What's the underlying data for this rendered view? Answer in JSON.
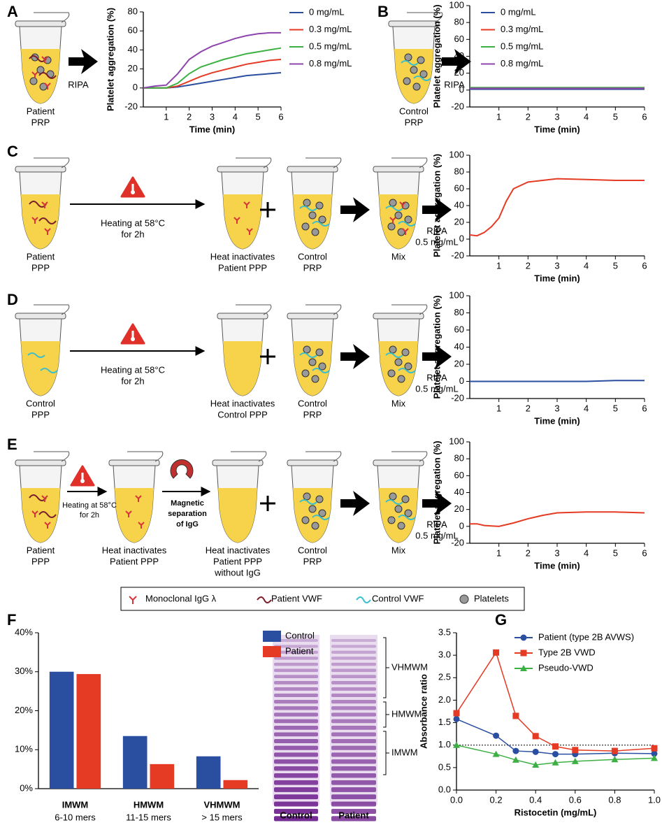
{
  "chart_data": [
    {
      "type": "line",
      "xlabel": "Time (min)",
      "ylabel": "Platelet aggregation (%)",
      "x": [
        0,
        0.5,
        1,
        1.5,
        2,
        2.5,
        3,
        3.5,
        4,
        4.5,
        5,
        5.5,
        6
      ],
      "xlim": [
        0,
        6
      ],
      "xticks": [
        1,
        2,
        3,
        4,
        5,
        6
      ],
      "ylim": [
        -20,
        80
      ],
      "yticks": [
        -20,
        0,
        20,
        40,
        60,
        80
      ],
      "legend": true,
      "series": [
        {
          "name": "0 mg/mL",
          "color": "#2b4fa0",
          "values": [
            0,
            0,
            0,
            1,
            3,
            5,
            7,
            9,
            11,
            13,
            14,
            15,
            16
          ]
        },
        {
          "name": "0.3 mg/mL",
          "color": "#e53a23",
          "values": [
            0,
            0,
            0,
            2,
            7,
            12,
            16,
            19,
            22,
            25,
            27,
            29,
            30
          ]
        },
        {
          "name": "0.5 mg/mL",
          "color": "#3cb043",
          "values": [
            0,
            0,
            0,
            5,
            15,
            22,
            26,
            30,
            33,
            36,
            38,
            40,
            42
          ]
        },
        {
          "name": "0.8 mg/mL",
          "color": "#8e44ad",
          "values": [
            0,
            2,
            3,
            15,
            30,
            38,
            44,
            48,
            52,
            55,
            57,
            58,
            58
          ]
        }
      ]
    },
    {
      "type": "line",
      "xlabel": "Time (min)",
      "ylabel": "Platelet aggregation (%)",
      "x": [
        0,
        0.5,
        1,
        1.5,
        2,
        2.5,
        3,
        3.5,
        4,
        4.5,
        5,
        5.5,
        6
      ],
      "xlim": [
        0,
        6
      ],
      "xticks": [
        1,
        2,
        3,
        4,
        5,
        6
      ],
      "ylim": [
        -20,
        100
      ],
      "yticks": [
        -20,
        0,
        20,
        40,
        60,
        80,
        100
      ],
      "legend": true,
      "series": [
        {
          "name": "0 mg/mL",
          "color": "#2b4fa0",
          "values": [
            1,
            1,
            1,
            1,
            1,
            1,
            1,
            1,
            1,
            1,
            1,
            1,
            1
          ]
        },
        {
          "name": "0.3 mg/mL",
          "color": "#e53a23",
          "values": [
            2,
            2,
            2,
            2,
            2,
            2,
            2,
            2,
            2,
            2,
            2,
            2,
            2
          ]
        },
        {
          "name": "0.5 mg/mL",
          "color": "#3cb043",
          "values": [
            3,
            3,
            3,
            3,
            3,
            3,
            3,
            3,
            3,
            3,
            3,
            3,
            3
          ]
        },
        {
          "name": "0.8 mg/mL",
          "color": "#8e44ad",
          "values": [
            2,
            2,
            2,
            2,
            2,
            2,
            2,
            2,
            2,
            2,
            2,
            2,
            2
          ]
        }
      ]
    },
    {
      "type": "line",
      "xlabel": "Time (min)",
      "ylabel": "Platelet aggregation (%)",
      "x": [
        0,
        0.25,
        0.5,
        0.75,
        1,
        1.25,
        1.5,
        2,
        2.5,
        3,
        4,
        5,
        6
      ],
      "xlim": [
        0,
        6
      ],
      "xticks": [
        1,
        2,
        3,
        4,
        5,
        6
      ],
      "ylim": [
        -20,
        100
      ],
      "yticks": [
        -20,
        0,
        20,
        40,
        60,
        80,
        100
      ],
      "legend": false,
      "series": [
        {
          "color": "#e53a23",
          "values": [
            5,
            4,
            8,
            15,
            25,
            45,
            60,
            68,
            70,
            72,
            71,
            70,
            70
          ]
        }
      ]
    },
    {
      "type": "line",
      "xlabel": "Time (min)",
      "ylabel": "Platelet aggregation (%)",
      "x": [
        0,
        1,
        2,
        3,
        4,
        5,
        6
      ],
      "xlim": [
        0,
        6
      ],
      "xticks": [
        1,
        2,
        3,
        4,
        5,
        6
      ],
      "ylim": [
        -20,
        100
      ],
      "yticks": [
        -20,
        0,
        20,
        40,
        60,
        80,
        100
      ],
      "legend": false,
      "series": [
        {
          "color": "#2b4fa0",
          "values": [
            0,
            0,
            0,
            0,
            0,
            1,
            1
          ]
        }
      ]
    },
    {
      "type": "line",
      "xlabel": "Time (min)",
      "ylabel": "Platelet aggregation (%)",
      "x": [
        0,
        0.25,
        0.5,
        1,
        1.5,
        2,
        2.5,
        3,
        4,
        5,
        6
      ],
      "xlim": [
        0,
        6
      ],
      "xticks": [
        1,
        2,
        3,
        4,
        5,
        6
      ],
      "ylim": [
        -20,
        100
      ],
      "yticks": [
        -20,
        0,
        20,
        40,
        60,
        80,
        100
      ],
      "legend": false,
      "series": [
        {
          "color": "#e53a23",
          "values": [
            3,
            3,
            1,
            0,
            4,
            9,
            13,
            16,
            17,
            17,
            16
          ]
        }
      ]
    },
    {
      "type": "bar",
      "categories": [
        "IMWM",
        "HMWM",
        "VHMWM"
      ],
      "category_sublabels": [
        "6-10 mers",
        "11-15 mers",
        "> 15 mers"
      ],
      "ylim": [
        0,
        40
      ],
      "yticks": [
        {
          "value": 0,
          "label": "0%"
        },
        {
          "value": 10,
          "label": "10%"
        },
        {
          "value": 20,
          "label": "20%"
        },
        {
          "value": 30,
          "label": "30%"
        },
        {
          "value": 40,
          "label": "40%"
        }
      ],
      "legend": true,
      "series": [
        {
          "name": "Control",
          "color": "#2b4fa0",
          "values": [
            30,
            13.5,
            8.3
          ]
        },
        {
          "name": "Patient",
          "color": "#e53a23",
          "values": [
            29.4,
            6.3,
            2.2
          ]
        }
      ]
    },
    {
      "type": "line",
      "xlabel": "Ristocetin (mg/mL)",
      "ylabel": "Absorbance ratio",
      "x": [
        0,
        0.2,
        0.3,
        0.4,
        0.5,
        0.6,
        0.8,
        1.0
      ],
      "xlim": [
        0,
        1
      ],
      "xticks": [
        {
          "value": 0,
          "label": "0.0"
        },
        {
          "value": 0.2,
          "label": "0.2"
        },
        {
          "value": 0.4,
          "label": "0.4"
        },
        {
          "value": 0.6,
          "label": "0.6"
        },
        {
          "value": 0.8,
          "label": "0.8"
        },
        {
          "value": 1,
          "label": "1.0"
        }
      ],
      "ylim": [
        0,
        3.5
      ],
      "yticks": [
        {
          "value": 0,
          "label": "0.0"
        },
        0.5,
        {
          "value": 1,
          "label": "1.0"
        },
        1.5,
        {
          "value": 2,
          "label": "2.0"
        },
        2.5,
        {
          "value": 3,
          "label": "3.0"
        },
        3.5
      ],
      "reference_line": 1,
      "legend": true,
      "series": [
        {
          "name": "Patient (type 2B AVWS)",
          "color": "#2b4fa0",
          "marker": "circle",
          "values": [
            1.58,
            1.21,
            0.87,
            0.85,
            0.8,
            0.8,
            0.82,
            0.81
          ]
        },
        {
          "name": "Type 2B VWD",
          "color": "#e53a23",
          "marker": "square",
          "values": [
            1.71,
            3.06,
            1.65,
            1.2,
            0.97,
            0.89,
            0.87,
            0.93
          ]
        },
        {
          "name": "Pseudo-VWD",
          "color": "#3cb043",
          "marker": "triangle",
          "values": [
            1.0,
            0.8,
            0.67,
            0.56,
            0.61,
            0.64,
            0.68,
            0.71
          ]
        }
      ]
    }
  ],
  "diagram": {
    "panel_labels": [
      "A",
      "B",
      "C",
      "D",
      "E",
      "F",
      "G"
    ],
    "A": {
      "tube": [
        "Patient",
        "PRP"
      ],
      "step": [
        "RIPA"
      ]
    },
    "B": {
      "tube": [
        "Control",
        "PRP"
      ],
      "step": [
        "RIPA"
      ]
    },
    "C": {
      "tubes": [
        [
          "Patient",
          "PPP"
        ],
        [
          "Heat inactivates",
          "Patient PPP"
        ],
        [
          "Control",
          "PRP"
        ],
        [
          "Mix"
        ]
      ],
      "heating": [
        "Heating at 58°C",
        "for 2h"
      ],
      "step": [
        "RIPA",
        "0.5 mg/mL"
      ]
    },
    "D": {
      "tubes": [
        [
          "Control",
          "PPP"
        ],
        [
          "Heat inactivates",
          "Control PPP"
        ],
        [
          "Control",
          "PRP"
        ],
        [
          "Mix"
        ]
      ],
      "heating": [
        "Heating at 58°C",
        "for 2h"
      ],
      "step": [
        "RIPA",
        "0.5 mg/mL"
      ]
    },
    "E": {
      "tubes": [
        [
          "Patient",
          "PPP"
        ],
        [
          "Heat inactivates",
          "Patient PPP"
        ],
        [
          "Heat inactivates",
          "Patient PPP",
          "without IgG"
        ],
        [
          "Control",
          "PRP"
        ],
        [
          "Mix"
        ]
      ],
      "heating": [
        "Heating at 58°C",
        "for 2h"
      ],
      "separation": [
        "Magnetic",
        "separation",
        "of IgG"
      ],
      "step": [
        "RIPA",
        "0.5 mg/mL"
      ]
    },
    "legend": [
      "Monoclonal IgG λ",
      "Patient VWF",
      "Control VWF",
      "Platelets"
    ],
    "gel": {
      "lanes": [
        "Control",
        "Patient"
      ],
      "bands": [
        "VHMWM",
        "HMWM",
        "IMWM"
      ]
    }
  }
}
